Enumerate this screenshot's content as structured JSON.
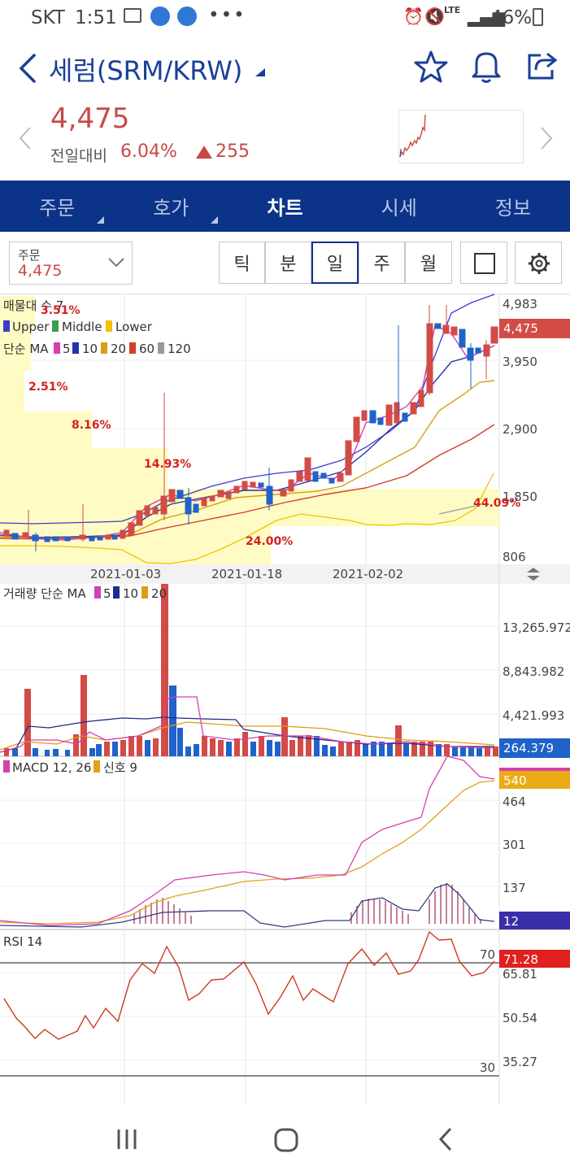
{
  "status_bar": {
    "carrier": "SKT",
    "time": "1:51",
    "network": "LTE",
    "battery": "46%"
  },
  "header": {
    "title": "세럼(SRM/KRW)"
  },
  "price": {
    "current": "4,475",
    "compare_label": "전일대비",
    "change_pct": "6.04%",
    "change_abs": "255",
    "up_color": "#c84a46"
  },
  "tabs": [
    {
      "label": "주문",
      "has_menu": true
    },
    {
      "label": "호가",
      "has_menu": true
    },
    {
      "label": "차트",
      "active": true
    },
    {
      "label": "시세"
    },
    {
      "label": "정보"
    }
  ],
  "order_select": {
    "label": "주문",
    "value": "4,475"
  },
  "periods": [
    "틱",
    "분",
    "일",
    "주",
    "월"
  ],
  "active_period": "일",
  "main_chart": {
    "volume_profile_label": "매물대 수 7",
    "bollinger": {
      "upper": "Upper",
      "middle": "Middle",
      "lower": "Lower"
    },
    "ma_label": "단순 MA",
    "ma_periods": [
      "5",
      "10",
      "20",
      "60",
      "120"
    ],
    "profile_pcts": [
      "3.51%",
      "2.51%",
      "8.16%",
      "14.93%",
      "24.00%",
      "44.09%"
    ],
    "y_ticks": [
      "4,983",
      "3,950",
      "2,900",
      "1,850",
      "806"
    ],
    "price_tag": "4,475",
    "dates": [
      "2021-01-03",
      "2021-01-18",
      "2021-02-02"
    ]
  },
  "volume_chart": {
    "label": "거래량 단순 MA",
    "ma_periods": [
      "5",
      "10",
      "20"
    ],
    "y_ticks": [
      "13,265.972",
      "8,843.982",
      "4,421.993"
    ],
    "value_tag": "264.379"
  },
  "macd_chart": {
    "label": "MACD 12, 26",
    "signal_label": "신호 9",
    "y_ticks": [
      "464",
      "301",
      "137"
    ],
    "macd_tag": "540",
    "hist_tag": "12"
  },
  "rsi_chart": {
    "label": "RSI 14",
    "y_ticks": [
      "65.81",
      "50.54",
      "35.27"
    ],
    "upper_band": "70",
    "lower_band": "30",
    "value_tag": "71.28"
  },
  "colors": {
    "navy": "#0b3388",
    "up": "#d24b46",
    "down": "#1f62c9",
    "profile": "#fffbc4"
  },
  "chart_data": {
    "type": "candlestick",
    "x_dates": [
      "2021-01-03",
      "2021-01-18",
      "2021-02-02"
    ],
    "price_range": [
      806,
      4983
    ],
    "last_price": 4475,
    "rsi_last": 71.28,
    "volume_last": 264.379
  }
}
